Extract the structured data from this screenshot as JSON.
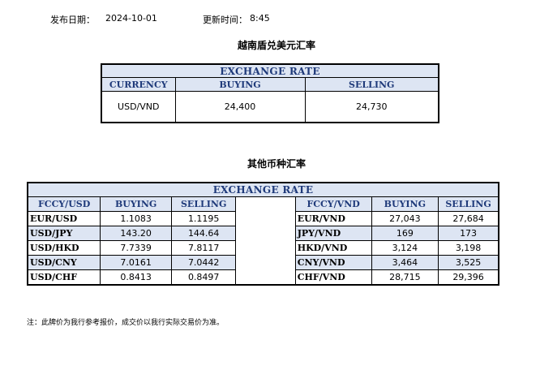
{
  "header": {
    "date_label": "发布日期：",
    "date_value": "2024-10-01",
    "time_label": "更新时间：",
    "time_value": "8:45"
  },
  "main_section": {
    "title": "越南盾兑美元汇率",
    "table_title": "EXCHANGE RATE",
    "columns": [
      "CURRENCY",
      "BUYING",
      "SELLING"
    ],
    "row": {
      "currency": "USD/VND",
      "buying": "24,400",
      "selling": "24,730"
    }
  },
  "other_section": {
    "title": "其他币种汇率",
    "table_title": "EXCHANGE  RATE",
    "left_columns": [
      "FCCY/USD",
      "BUYING",
      "SELLING"
    ],
    "right_columns": [
      "FCCY/VND",
      "BUYING",
      "SELLING"
    ],
    "rows": [
      {
        "left": [
          "EUR/USD",
          "1.1083",
          "1.1195"
        ],
        "right": [
          "EUR/VND",
          "27,043",
          "27,684"
        ]
      },
      {
        "left": [
          "USD/JPY",
          "143.20",
          "144.64"
        ],
        "right": [
          "JPY/VND",
          "169",
          "173"
        ]
      },
      {
        "left": [
          "USD/HKD",
          "7.7339",
          "7.8117"
        ],
        "right": [
          "HKD/VND",
          "3,124",
          "3,198"
        ]
      },
      {
        "left": [
          "USD/CNY",
          "7.0161",
          "7.0442"
        ],
        "right": [
          "CNY/VND",
          "3,464",
          "3,525"
        ]
      },
      {
        "left": [
          "USD/CHF",
          "0.8413",
          "0.8497"
        ],
        "right": [
          "CHF/VND",
          "28,715",
          "29,396"
        ]
      }
    ]
  },
  "footer": {
    "note": "注：此牌价为我行参考报价，成交价以我行实际交易价为准。"
  }
}
